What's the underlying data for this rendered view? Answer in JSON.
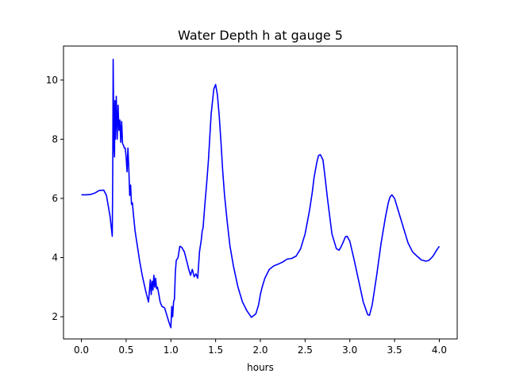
{
  "chart_data": {
    "type": "line",
    "title": "Water Depth h at gauge 5",
    "xlabel": "hours",
    "ylabel": "",
    "xlim": [
      -0.2,
      4.2
    ],
    "ylim": [
      1.25,
      11.15
    ],
    "xticks": [
      0.0,
      0.5,
      1.0,
      1.5,
      2.0,
      2.5,
      3.0,
      3.5,
      4.0
    ],
    "xtick_labels": [
      "0.0",
      "0.5",
      "1.0",
      "1.5",
      "2.0",
      "2.5",
      "3.0",
      "3.5",
      "4.0"
    ],
    "yticks": [
      2,
      4,
      6,
      8,
      10
    ],
    "ytick_labels": [
      "2",
      "4",
      "6",
      "8",
      "10"
    ],
    "grid": false,
    "line_color": "#0000ff",
    "series": [
      {
        "x": [
          0.0,
          0.05,
          0.1,
          0.15,
          0.2,
          0.25,
          0.28,
          0.32,
          0.345,
          0.35,
          0.355,
          0.36,
          0.365,
          0.37,
          0.375,
          0.38,
          0.39,
          0.4,
          0.41,
          0.42,
          0.43,
          0.44,
          0.45,
          0.46,
          0.47,
          0.48,
          0.49,
          0.5,
          0.51,
          0.52,
          0.53,
          0.54,
          0.55,
          0.56,
          0.57,
          0.58,
          0.6,
          0.62,
          0.65,
          0.68,
          0.72,
          0.75,
          0.77,
          0.78,
          0.79,
          0.8,
          0.81,
          0.82,
          0.83,
          0.84,
          0.85,
          0.86,
          0.88,
          0.9,
          0.93,
          0.95,
          0.98,
          1.0,
          1.01,
          1.02,
          1.03,
          1.04,
          1.05,
          1.06,
          1.08,
          1.1,
          1.12,
          1.15,
          1.18,
          1.2,
          1.22,
          1.24,
          1.26,
          1.28,
          1.3,
          1.32,
          1.34,
          1.35,
          1.36,
          1.38,
          1.4,
          1.42,
          1.45,
          1.48,
          1.5,
          1.52,
          1.54,
          1.56,
          1.58,
          1.6,
          1.63,
          1.66,
          1.7,
          1.75,
          1.8,
          1.85,
          1.9,
          1.95,
          1.98,
          2.0,
          2.02,
          2.05,
          2.1,
          2.15,
          2.2,
          2.25,
          2.3,
          2.35,
          2.4,
          2.45,
          2.5,
          2.55,
          2.58,
          2.6,
          2.63,
          2.65,
          2.67,
          2.7,
          2.72,
          2.75,
          2.8,
          2.85,
          2.88,
          2.9,
          2.93,
          2.95,
          2.97,
          3.0,
          3.05,
          3.1,
          3.15,
          3.2,
          3.22,
          3.25,
          3.3,
          3.35,
          3.4,
          3.43,
          3.45,
          3.47,
          3.5,
          3.55,
          3.6,
          3.65,
          3.7,
          3.75,
          3.8,
          3.85,
          3.88,
          3.9,
          3.93,
          3.95,
          3.97,
          4.0
        ],
        "values": [
          6.12,
          6.12,
          6.13,
          6.18,
          6.27,
          6.28,
          6.1,
          5.4,
          4.72,
          6.7,
          10.7,
          9.0,
          7.7,
          7.4,
          9.3,
          8.0,
          9.45,
          8.0,
          9.15,
          8.3,
          8.65,
          7.9,
          8.6,
          7.85,
          7.8,
          7.7,
          7.7,
          7.4,
          6.9,
          7.7,
          7.0,
          6.1,
          6.45,
          5.8,
          5.85,
          5.5,
          4.9,
          4.5,
          3.9,
          3.4,
          2.85,
          2.5,
          3.25,
          2.75,
          3.2,
          2.9,
          3.4,
          3.0,
          3.3,
          2.95,
          3.0,
          2.85,
          2.5,
          2.35,
          2.3,
          2.1,
          1.8,
          1.63,
          2.35,
          2.0,
          2.5,
          2.6,
          3.5,
          3.9,
          4.0,
          4.38,
          4.35,
          4.2,
          3.85,
          3.6,
          3.4,
          3.6,
          3.35,
          3.45,
          3.3,
          4.2,
          4.6,
          4.9,
          5.0,
          5.8,
          6.5,
          7.3,
          8.85,
          9.7,
          9.85,
          9.5,
          8.8,
          7.9,
          6.9,
          6.1,
          5.2,
          4.4,
          3.7,
          3.0,
          2.5,
          2.2,
          1.98,
          2.1,
          2.4,
          2.75,
          3.0,
          3.3,
          3.6,
          3.72,
          3.78,
          3.85,
          3.95,
          3.97,
          4.05,
          4.3,
          4.8,
          5.6,
          6.2,
          6.7,
          7.2,
          7.45,
          7.48,
          7.3,
          6.8,
          6.0,
          4.8,
          4.3,
          4.25,
          4.35,
          4.55,
          4.7,
          4.72,
          4.55,
          3.9,
          3.2,
          2.5,
          2.07,
          2.05,
          2.4,
          3.4,
          4.5,
          5.4,
          5.85,
          6.05,
          6.12,
          6.0,
          5.5,
          5.0,
          4.5,
          4.2,
          4.05,
          3.92,
          3.88,
          3.9,
          3.95,
          4.05,
          4.15,
          4.25,
          4.38
        ]
      }
    ]
  }
}
